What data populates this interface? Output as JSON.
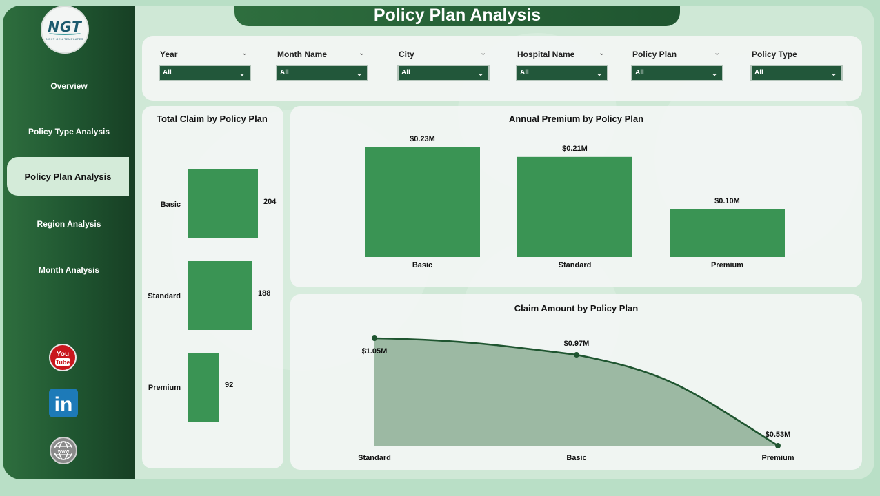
{
  "page": {
    "title": "Policy Plan Analysis"
  },
  "logo": {
    "text": "NGT",
    "subtitle": "NEXT GEN TEMPLATES"
  },
  "nav": [
    {
      "label": "Overview"
    },
    {
      "label": "Policy Type Analysis"
    },
    {
      "label": "Policy Plan Analysis",
      "active": true
    },
    {
      "label": "Region Analysis"
    },
    {
      "label": "Month Analysis"
    }
  ],
  "social": {
    "youtube": "You Tube",
    "linkedin": "in",
    "website": "www"
  },
  "filters": [
    {
      "label": "Year",
      "value": "All"
    },
    {
      "label": "Month Name",
      "value": "All"
    },
    {
      "label": "City",
      "value": "All"
    },
    {
      "label": "Hospital Name",
      "value": "All"
    },
    {
      "label": "Policy Plan",
      "value": "All"
    },
    {
      "label": "Policy Type",
      "value": "All"
    }
  ],
  "colors": {
    "accent": "#22573a",
    "bar": "#3a9454",
    "area_fill": "#9cb9a3",
    "line": "#1f5530"
  },
  "chart_data": [
    {
      "type": "bar",
      "orientation": "horizontal",
      "title": "Total Claim by Policy Plan",
      "categories": [
        "Basic",
        "Standard",
        "Premium"
      ],
      "values": [
        204,
        188,
        92
      ],
      "labels": [
        "204",
        "188",
        "92"
      ]
    },
    {
      "type": "bar",
      "title": "Annual Premium by Policy Plan",
      "categories": [
        "Basic",
        "Standard",
        "Premium"
      ],
      "values": [
        0.23,
        0.21,
        0.1
      ],
      "labels": [
        "$0.23M",
        "$0.21M",
        "$0.10M"
      ]
    },
    {
      "type": "area",
      "title": "Claim Amount by Policy Plan",
      "categories": [
        "Standard",
        "Basic",
        "Premium"
      ],
      "values": [
        1.05,
        0.97,
        0.53
      ],
      "labels": [
        "$1.05M",
        "$0.97M",
        "$0.53M"
      ]
    }
  ]
}
